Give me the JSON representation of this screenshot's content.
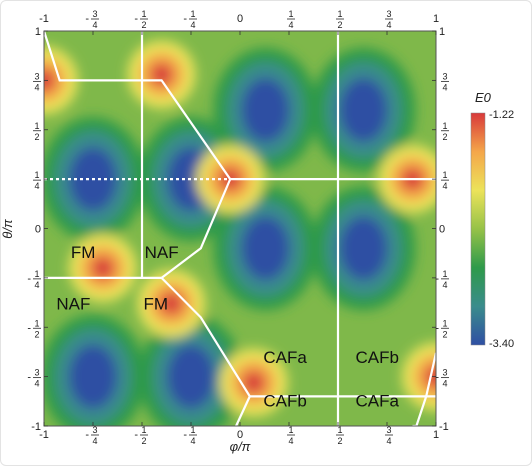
{
  "chart_data": {
    "type": "heatmap",
    "xlabel": "φ/π",
    "ylabel": "θ/π",
    "xlim": [
      -1,
      1
    ],
    "ylim": [
      -1,
      1
    ],
    "x_ticks": [
      {
        "value": -1,
        "label": "-1"
      },
      {
        "value": -0.75,
        "label": "-3/4"
      },
      {
        "value": -0.5,
        "label": "-1/2"
      },
      {
        "value": -0.25,
        "label": "-1/4"
      },
      {
        "value": 0,
        "label": "0"
      },
      {
        "value": 0.25,
        "label": "1/4"
      },
      {
        "value": 0.5,
        "label": "1/2"
      },
      {
        "value": 0.75,
        "label": "3/4"
      },
      {
        "value": 1,
        "label": "1"
      }
    ],
    "y_ticks": [
      {
        "value": 1,
        "label": "1"
      },
      {
        "value": 0.75,
        "label": "3/4"
      },
      {
        "value": 0.5,
        "label": "1/2"
      },
      {
        "value": 0.25,
        "label": "1/4"
      },
      {
        "value": 0,
        "label": "0"
      },
      {
        "value": -0.25,
        "label": "-1/4"
      },
      {
        "value": -0.5,
        "label": "-1/2"
      },
      {
        "value": -0.75,
        "label": "-3/4"
      },
      {
        "value": -1,
        "label": "-1"
      }
    ],
    "colorbar": {
      "title": "E0",
      "max_label": "-1.22",
      "min_label": "-3.40",
      "max": -1.22,
      "min": -3.4,
      "colors": [
        "#2f4fa3",
        "#3a8c8c",
        "#2e9a4a",
        "#96c248",
        "#ece35a",
        "#f4a64a",
        "#d8393a"
      ]
    },
    "regions": [
      {
        "label": "FM",
        "x": -0.8,
        "y": -0.12
      },
      {
        "label": "NAF",
        "x": -0.4,
        "y": -0.12
      },
      {
        "label": "NAF",
        "x": -0.85,
        "y": -0.38
      },
      {
        "label": "FM",
        "x": -0.43,
        "y": -0.38
      },
      {
        "label": "CAFa",
        "x": 0.23,
        "y": -0.65
      },
      {
        "label": "CAFb",
        "x": 0.7,
        "y": -0.65
      },
      {
        "label": "CAFb",
        "x": 0.23,
        "y": -0.87
      },
      {
        "label": "CAFa",
        "x": 0.7,
        "y": -0.87
      }
    ],
    "minima": [
      {
        "x": -0.75,
        "y": 0.25
      },
      {
        "x": -0.25,
        "y": 0.25
      },
      {
        "x": 0.13,
        "y": 0.6
      },
      {
        "x": 0.63,
        "y": 0.6
      },
      {
        "x": 0.13,
        "y": -0.1
      },
      {
        "x": 0.63,
        "y": -0.1
      },
      {
        "x": -0.75,
        "y": -0.75
      },
      {
        "x": -0.25,
        "y": -0.75
      }
    ],
    "maxima": [
      {
        "x": -1,
        "y": 0.75
      },
      {
        "x": -0.4,
        "y": 0.78
      },
      {
        "x": -0.05,
        "y": 0.25
      },
      {
        "x": 0.88,
        "y": 0.25
      },
      {
        "x": -0.7,
        "y": -0.2
      },
      {
        "x": -0.35,
        "y": -0.38
      },
      {
        "x": 0.07,
        "y": -0.78
      },
      {
        "x": 1,
        "y": -0.75
      }
    ],
    "boundaries": [
      {
        "x": [
          -1,
          -0.92,
          -0.6,
          -0.4,
          -0.05
        ],
        "y": [
          1,
          0.75,
          0.75,
          0.75,
          0.25
        ]
      },
      {
        "x": [
          -0.5,
          -0.5
        ],
        "y": [
          1,
          -0.25
        ]
      },
      {
        "x": [
          -0.05,
          1
        ],
        "y": [
          0.25,
          0.25
        ]
      },
      {
        "x": [
          0.5,
          0.5
        ],
        "y": [
          1,
          -1
        ]
      },
      {
        "x": [
          -0.05,
          -0.2,
          -0.4
        ],
        "y": [
          0.25,
          -0.1,
          -0.25
        ]
      },
      {
        "x": [
          -1,
          -0.95,
          -0.5,
          -0.4
        ],
        "y": [
          -0.25,
          -0.25,
          -0.25,
          -0.25
        ]
      },
      {
        "x": [
          -0.4,
          -0.2,
          0.05
        ],
        "y": [
          -0.25,
          -0.45,
          -0.85
        ]
      },
      {
        "x": [
          0.05,
          -0.02
        ],
        "y": [
          -0.85,
          -1
        ]
      },
      {
        "x": [
          0.05,
          1
        ],
        "y": [
          -0.85,
          -0.85
        ]
      },
      {
        "x": [
          0.95,
          1
        ],
        "y": [
          -0.85,
          -0.63
        ]
      },
      {
        "x": [
          0.95,
          0.9,
          0.88
        ],
        "y": [
          -0.85,
          -1,
          -1
        ]
      }
    ],
    "dotted_line": {
      "y": 0.25,
      "x": [
        -1,
        -0.05
      ]
    }
  }
}
